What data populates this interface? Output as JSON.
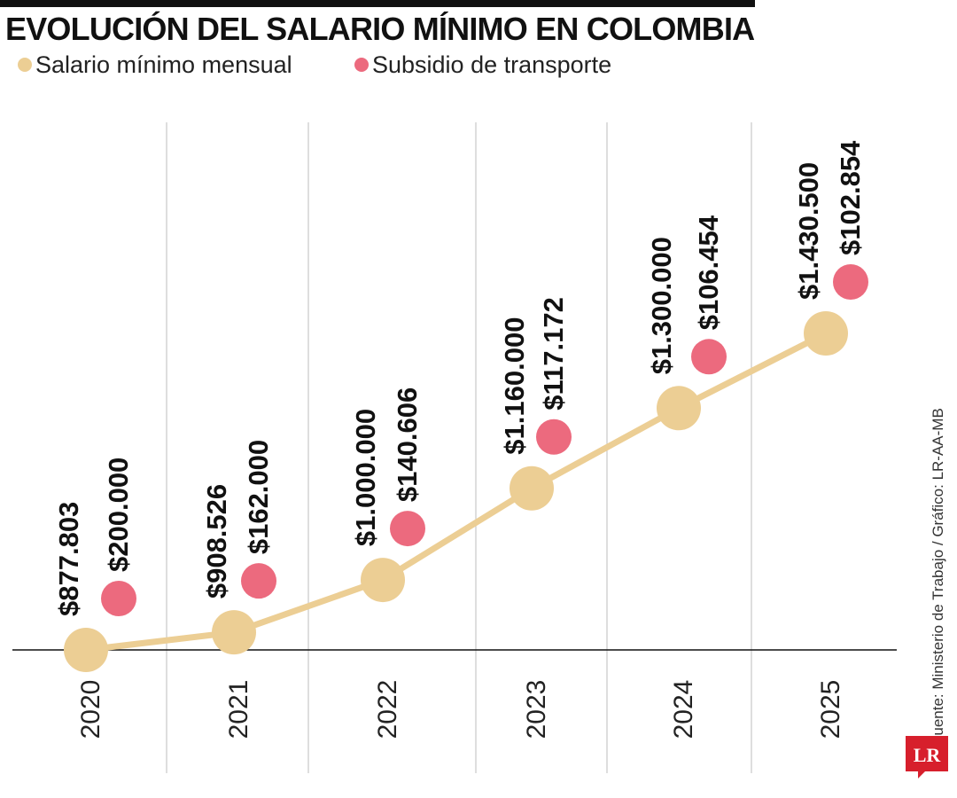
{
  "title": "EVOLUCIÓN DEL SALARIO MÍNIMO EN COLOMBIA",
  "source": "Fuente: Ministerio de Trabajo / Gráfico: LR-AA-MB",
  "logo_text": "LR",
  "colors": {
    "salario": "#ecce94",
    "subsidio": "#ec6a7e",
    "logo": "#d71f2c",
    "text": "#111111"
  },
  "chart_data": {
    "type": "line",
    "title": "EVOLUCIÓN DEL SALARIO MÍNIMO EN COLOMBIA",
    "x": [
      "2020",
      "2021",
      "2022",
      "2023",
      "2024",
      "2025"
    ],
    "series": [
      {
        "name": "Salario mínimo mensual",
        "values": [
          877803,
          908526,
          1000000,
          1160000,
          1300000,
          1430500
        ],
        "labels": [
          "$877.803",
          "$908.526",
          "$1.000.000",
          "$1.160.000",
          "$1.300.000",
          "$1.430.500"
        ]
      },
      {
        "name": "Subsidio de transporte",
        "values": [
          200000,
          162000,
          140606,
          117172,
          106454,
          102854
        ],
        "labels": [
          "$200.000",
          "$162.000",
          "$140.606",
          "$117.172",
          "$106.454",
          "$102.854"
        ]
      }
    ],
    "grid": "vertical",
    "legend": "top-left"
  }
}
